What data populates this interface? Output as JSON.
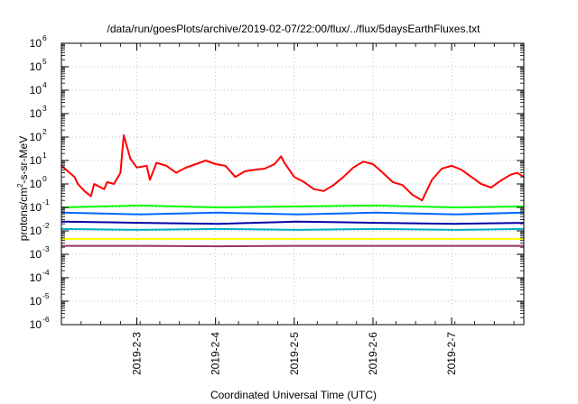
{
  "chart_data": {
    "type": "line",
    "title": "/data/run/goesPlots/archive/2019-02-07/22:00/flux/../flux/5daysEarthFluxes.txt",
    "xlabel": "Coordinated Universal Time (UTC)",
    "ylabel_base": "protons/cm",
    "ylabel_sup": "2",
    "ylabel_tail": "-s-sr-MeV",
    "y_scale": "log",
    "ylim": [
      1e-06,
      1000000.0
    ],
    "y_ticks": [
      {
        "value": 1e-06,
        "base": "10",
        "exp": "-6"
      },
      {
        "value": 1e-05,
        "base": "10",
        "exp": "-5"
      },
      {
        "value": 0.0001,
        "base": "10",
        "exp": "-4"
      },
      {
        "value": 0.001,
        "base": "10",
        "exp": "-3"
      },
      {
        "value": 0.01,
        "base": "10",
        "exp": "-2"
      },
      {
        "value": 0.1,
        "base": "10",
        "exp": "-1"
      },
      {
        "value": 1,
        "base": "10",
        "exp": "0"
      },
      {
        "value": 10,
        "base": "10",
        "exp": "1"
      },
      {
        "value": 100,
        "base": "10",
        "exp": "2"
      },
      {
        "value": 1000,
        "base": "10",
        "exp": "3"
      },
      {
        "value": 10000,
        "base": "10",
        "exp": "4"
      },
      {
        "value": 100000,
        "base": "10",
        "exp": "5"
      },
      {
        "value": 1000000,
        "base": "10",
        "exp": "6"
      }
    ],
    "xlim": [
      "2019-02-02 01:00",
      "2019-02-07 22:00"
    ],
    "x_ticks": [
      "2019-2-3",
      "2019-2-4",
      "2019-2-5",
      "2019-2-6",
      "2019-2-7"
    ],
    "grid": true,
    "series": [
      {
        "color": "#ff0000",
        "x": [
          "2019-02-02 01:00",
          "2019-02-02 05:00",
          "2019-02-02 06:00",
          "2019-02-02 08:00",
          "2019-02-02 10:00",
          "2019-02-02 11:00",
          "2019-02-02 14:00",
          "2019-02-02 15:00",
          "2019-02-02 17:00",
          "2019-02-02 19:00",
          "2019-02-02 20:00",
          "2019-02-02 22:00",
          "2019-02-03 00:00",
          "2019-02-03 03:00",
          "2019-02-03 04:00",
          "2019-02-03 06:00",
          "2019-02-03 09:00",
          "2019-02-03 12:00",
          "2019-02-03 15:00",
          "2019-02-03 18:00",
          "2019-02-03 21:00",
          "2019-02-04 00:00",
          "2019-02-04 03:00",
          "2019-02-04 06:00",
          "2019-02-04 09:00",
          "2019-02-04 12:00",
          "2019-02-04 15:00",
          "2019-02-04 18:00",
          "2019-02-04 20:00",
          "2019-02-04 21:00",
          "2019-02-05 00:00",
          "2019-02-05 03:00",
          "2019-02-05 06:00",
          "2019-02-05 09:00",
          "2019-02-05 12:00",
          "2019-02-05 15:00",
          "2019-02-05 18:00",
          "2019-02-05 21:00",
          "2019-02-06 00:00",
          "2019-02-06 03:00",
          "2019-02-06 06:00",
          "2019-02-06 09:00",
          "2019-02-06 12:00",
          "2019-02-06 15:00",
          "2019-02-06 18:00",
          "2019-02-06 21:00",
          "2019-02-07 00:00",
          "2019-02-07 03:00",
          "2019-02-07 06:00",
          "2019-02-07 09:00",
          "2019-02-07 12:00",
          "2019-02-07 15:00",
          "2019-02-07 18:00",
          "2019-02-07 20:00",
          "2019-02-07 22:00"
        ],
        "y": [
          6,
          2,
          1,
          0.5,
          0.3,
          1,
          0.6,
          1.2,
          1,
          3,
          120,
          12,
          5,
          6,
          1.5,
          8,
          6,
          3,
          5,
          7,
          10,
          7,
          6,
          2,
          3.5,
          4,
          4.5,
          7,
          15,
          8,
          2,
          1.2,
          0.6,
          0.5,
          0.9,
          2,
          5,
          9,
          7,
          3,
          1.2,
          0.9,
          0.35,
          0.2,
          1.5,
          4.5,
          6,
          4,
          2,
          1,
          0.7,
          1.4,
          2.5,
          3,
          2
        ]
      },
      {
        "color": "#00ff00",
        "x": [
          "2019-02-02 01:00",
          "2019-02-03 01:00",
          "2019-02-04 01:00",
          "2019-02-05 01:00",
          "2019-02-06 01:00",
          "2019-02-07 01:00",
          "2019-02-07 22:00"
        ],
        "y": [
          0.1,
          0.12,
          0.1,
          0.11,
          0.12,
          0.1,
          0.11
        ]
      },
      {
        "color": "#0066ff",
        "x": [
          "2019-02-02 01:00",
          "2019-02-03 01:00",
          "2019-02-04 01:00",
          "2019-02-05 01:00",
          "2019-02-06 01:00",
          "2019-02-07 01:00",
          "2019-02-07 22:00"
        ],
        "y": [
          0.06,
          0.05,
          0.06,
          0.05,
          0.06,
          0.05,
          0.06
        ]
      },
      {
        "color": "#0000aa",
        "x": [
          "2019-02-02 01:00",
          "2019-02-03 01:00",
          "2019-02-04 01:00",
          "2019-02-05 01:00",
          "2019-02-06 01:00",
          "2019-02-07 01:00",
          "2019-02-07 22:00"
        ],
        "y": [
          0.025,
          0.022,
          0.02,
          0.025,
          0.022,
          0.02,
          0.022
        ]
      },
      {
        "color": "#00b0c8",
        "x": [
          "2019-02-02 01:00",
          "2019-02-03 01:00",
          "2019-02-04 01:00",
          "2019-02-05 01:00",
          "2019-02-06 01:00",
          "2019-02-07 01:00",
          "2019-02-07 22:00"
        ],
        "y": [
          0.012,
          0.011,
          0.012,
          0.011,
          0.012,
          0.011,
          0.012
        ]
      },
      {
        "color": "#ffff00",
        "x": [
          "2019-02-02 01:00",
          "2019-02-03 01:00",
          "2019-02-04 01:00",
          "2019-02-05 01:00",
          "2019-02-06 01:00",
          "2019-02-07 01:00",
          "2019-02-07 22:00"
        ],
        "y": [
          0.0045,
          0.0045,
          0.0045,
          0.0045,
          0.0045,
          0.0045,
          0.0045
        ]
      },
      {
        "color": "#993366",
        "x": [
          "2019-02-02 01:00",
          "2019-02-03 01:00",
          "2019-02-04 01:00",
          "2019-02-05 01:00",
          "2019-02-06 01:00",
          "2019-02-07 01:00",
          "2019-02-07 22:00"
        ],
        "y": [
          0.0023,
          0.0023,
          0.0022,
          0.0023,
          0.0023,
          0.0023,
          0.0023
        ]
      }
    ]
  }
}
